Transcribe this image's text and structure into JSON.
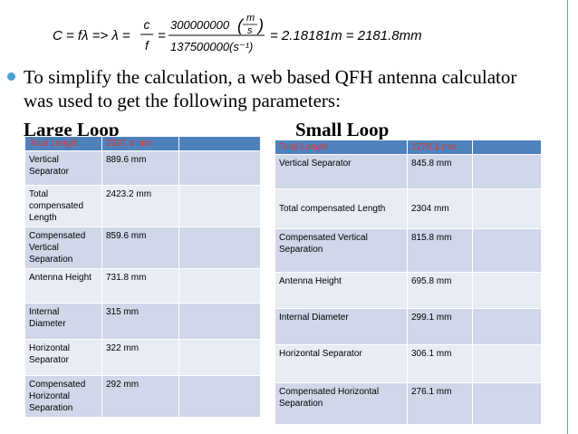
{
  "formula": {
    "left": "C = fλ => λ =",
    "frac1_num": "c",
    "frac1_den": "f",
    "eq": "=",
    "frac2_num_value": "300000000",
    "frac2_num_unit_top": "m",
    "frac2_num_unit_bottom": "s",
    "frac2_den_value": "137500000",
    "frac2_den_unit": "(s⁻¹)",
    "result": "= 2.18181m = 2181.8mm"
  },
  "bullet_text": "To simplify the calculation, a web based QFH antenna calculator was used to get the following parameters:",
  "large_loop": {
    "title": "Large Loop",
    "header": [
      "Total Length",
      "2397.4 mm",
      ""
    ],
    "rows": [
      [
        "Vertical Separator",
        "889.6 mm",
        ""
      ],
      [
        "Total compensated Length",
        "2423.2 mm",
        ""
      ],
      [
        "Compensated Vertical Separation",
        "859.6 mm",
        ""
      ],
      [
        "Antenna Height",
        "731.8 mm",
        ""
      ],
      [
        "Internal Diameter",
        "315 mm",
        ""
      ],
      [
        "Horizontal Separator",
        "322 mm",
        ""
      ],
      [
        "Compensated Horizontal Separation",
        "292 mm",
        ""
      ]
    ]
  },
  "small_loop": {
    "title": "Small Loop",
    "header": [
      "Total Length",
      "2278.3 mm",
      ""
    ],
    "rows": [
      [
        "Vertical Separator",
        "845.8 mm",
        ""
      ],
      [
        "Total compensated Length",
        "2304 mm",
        ""
      ],
      [
        "Compensated Vertical Separation",
        "815.8 mm",
        ""
      ],
      [
        "Antenna Height",
        "695.8 mm",
        ""
      ],
      [
        "Internal Diameter",
        "299.1 mm",
        ""
      ],
      [
        "Horizontal Separator",
        "306.1 mm",
        ""
      ],
      [
        "Compensated Horizontal Separation",
        "276.1 mm",
        ""
      ]
    ]
  }
}
